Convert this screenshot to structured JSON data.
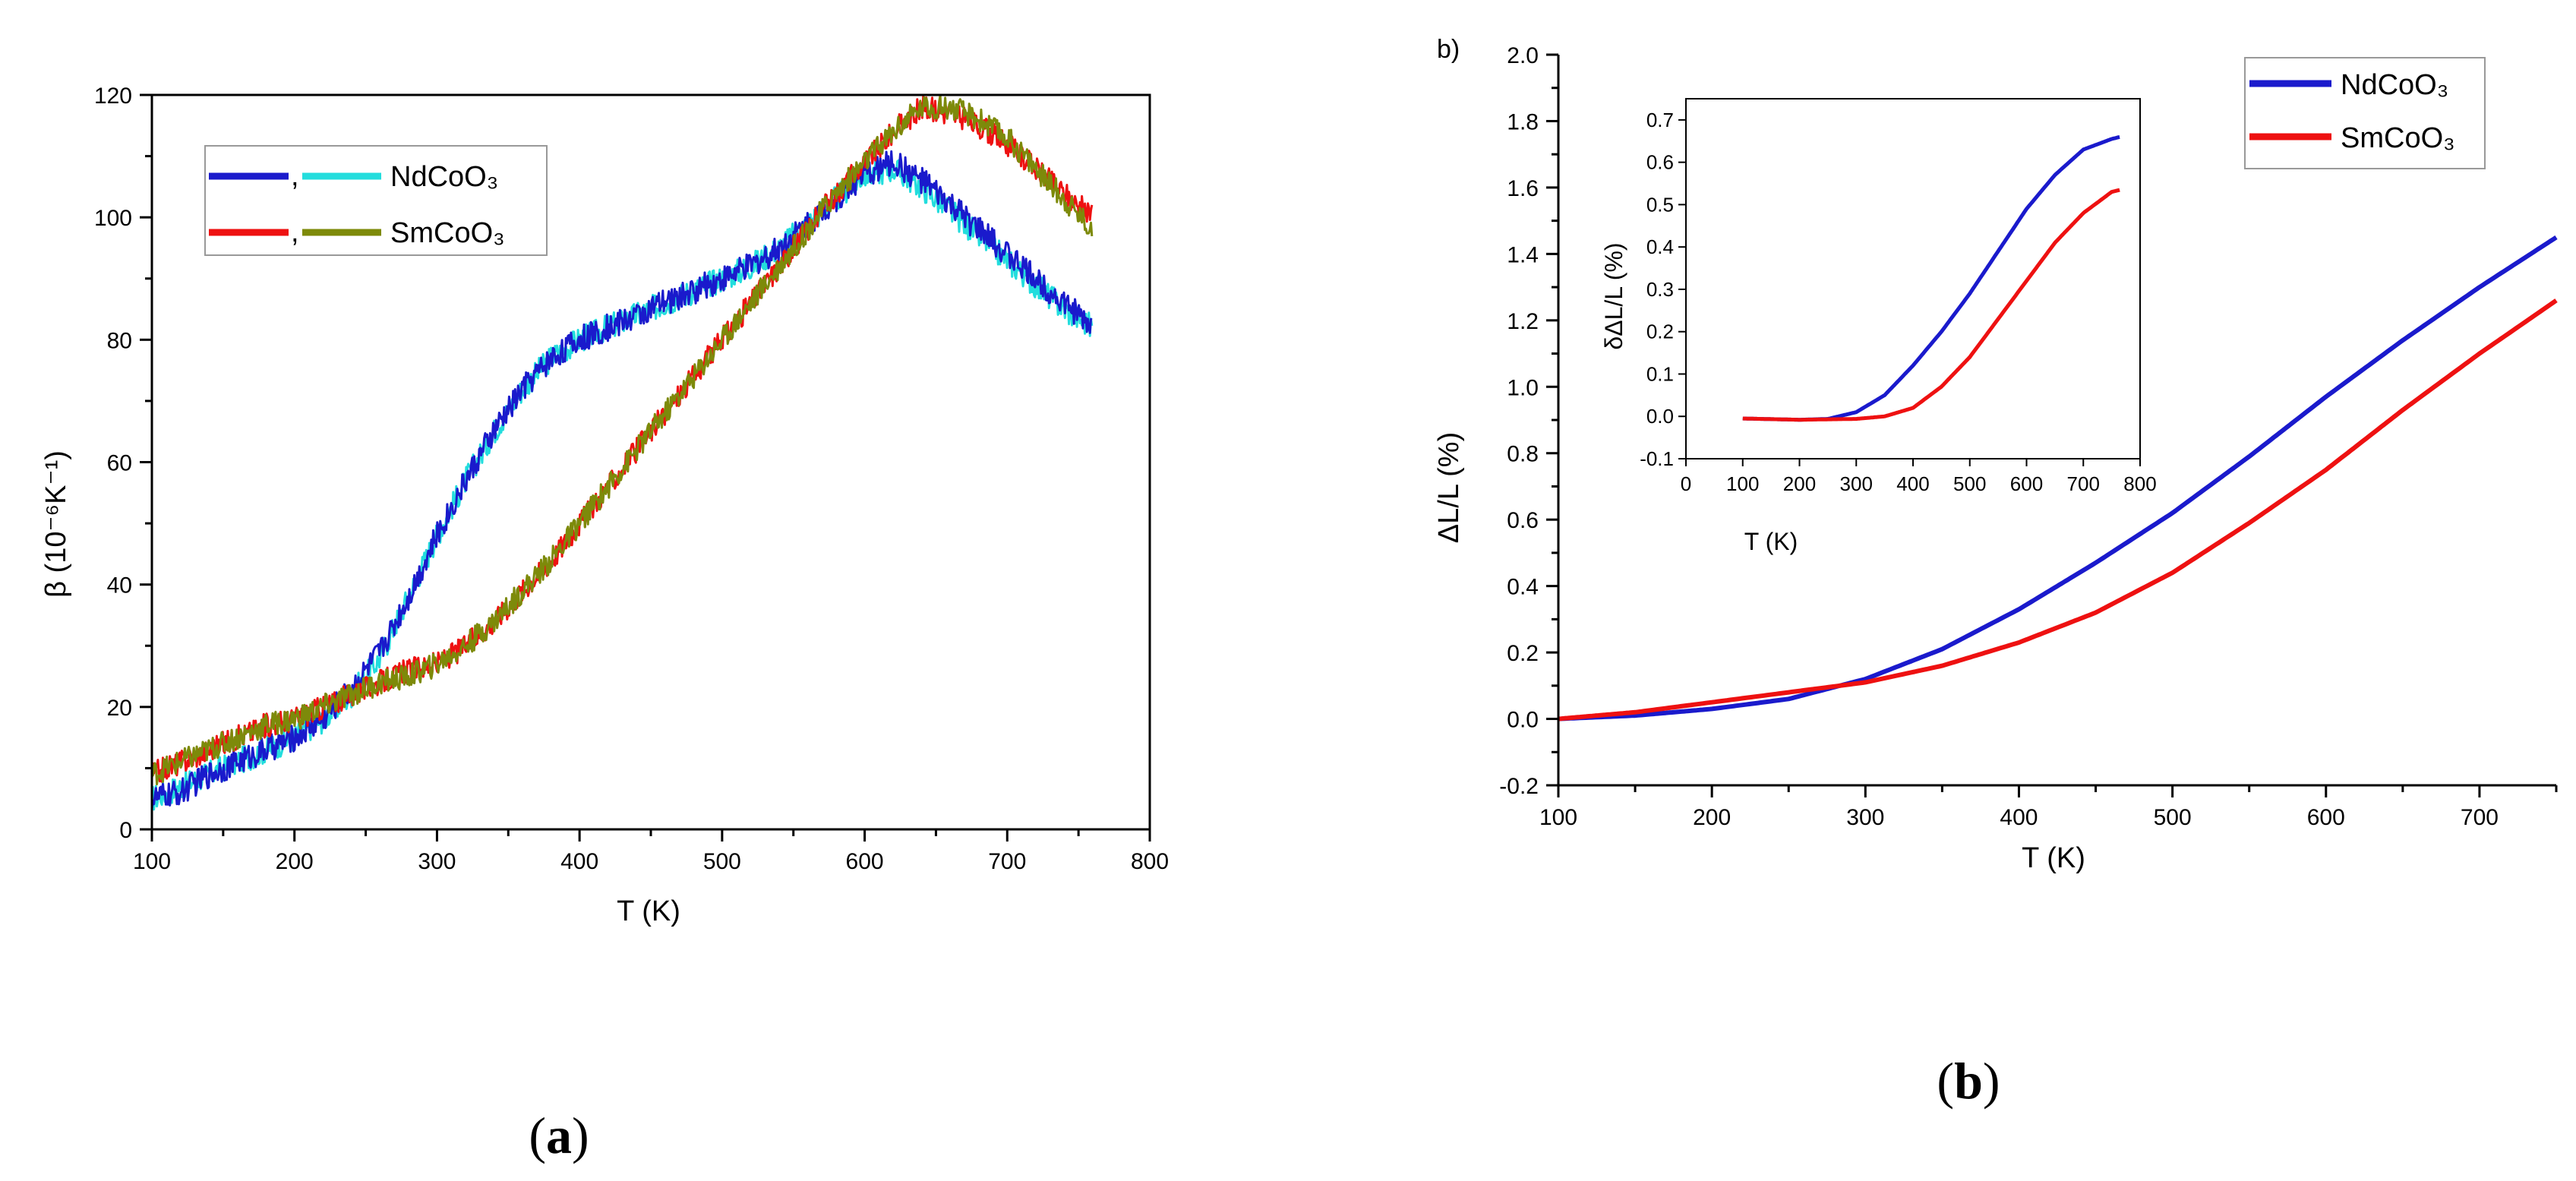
{
  "chart_data": [
    {
      "id": "panel-a",
      "type": "line",
      "xlabel": "T (K)",
      "ylabel": "β (10⁻⁶K⁻¹)",
      "xlim": [
        100,
        800
      ],
      "ylim": [
        0,
        120
      ],
      "xticks": [
        100,
        200,
        300,
        400,
        500,
        600,
        700,
        800
      ],
      "yticks": [
        0,
        20,
        40,
        60,
        80,
        100,
        120
      ],
      "caption": {
        "open": "(",
        "letter": "a",
        "close": ")"
      },
      "legend": {
        "position": "top-left",
        "entries": [
          {
            "label": "NdCoO₃",
            "sep": ",",
            "colors": [
              "#1a1acc",
              "#22dddd"
            ]
          },
          {
            "label": "SmCoO₃",
            "sep": ",",
            "colors": [
              "#ee1111",
              "#7d8a0a"
            ]
          }
        ]
      },
      "series": [
        {
          "name": "NdCoO3 (run 1)",
          "color": "#22dddd",
          "noise": 2.2,
          "x": [
            100,
            120,
            140,
            160,
            180,
            200,
            220,
            240,
            260,
            280,
            300,
            320,
            340,
            360,
            380,
            400,
            420,
            440,
            460,
            480,
            500,
            520,
            540,
            560,
            580,
            600,
            620,
            640,
            660,
            680,
            700,
            720,
            740,
            760
          ],
          "y": [
            5,
            7,
            9,
            11,
            13,
            15,
            18,
            22,
            28,
            38,
            48,
            57,
            65,
            72,
            77,
            80,
            82,
            84,
            86,
            88,
            90,
            92,
            95,
            99,
            103,
            107,
            108,
            105,
            101,
            97,
            93,
            89,
            85,
            82
          ]
        },
        {
          "name": "NdCoO3 (run 2)",
          "color": "#1a1acc",
          "noise": 2.2,
          "x": [
            100,
            120,
            140,
            160,
            180,
            200,
            220,
            240,
            260,
            280,
            300,
            320,
            340,
            360,
            380,
            400,
            420,
            440,
            460,
            480,
            500,
            520,
            540,
            560,
            580,
            600,
            620,
            640,
            660,
            680,
            700,
            720,
            740,
            760
          ],
          "y": [
            5,
            6,
            9,
            11,
            13,
            15,
            18,
            23,
            29,
            38,
            48,
            57,
            65,
            72,
            77,
            80,
            82,
            84,
            86,
            88,
            90,
            92,
            95,
            99,
            103,
            107,
            109,
            106,
            102,
            98,
            94,
            90,
            86,
            82
          ]
        },
        {
          "name": "SmCoO3 (run 1)",
          "color": "#ee1111",
          "noise": 2.0,
          "x": [
            100,
            120,
            140,
            160,
            180,
            200,
            220,
            240,
            260,
            280,
            300,
            320,
            340,
            360,
            380,
            400,
            420,
            440,
            460,
            480,
            500,
            520,
            540,
            560,
            580,
            600,
            620,
            640,
            660,
            680,
            700,
            720,
            740,
            760
          ],
          "y": [
            9,
            11,
            13,
            15,
            17,
            18,
            20,
            22,
            24,
            26,
            27,
            30,
            34,
            39,
            44,
            50,
            56,
            62,
            68,
            74,
            80,
            86,
            92,
            98,
            104,
            109,
            114,
            118,
            117,
            115,
            112,
            108,
            104,
            100
          ]
        },
        {
          "name": "SmCoO3 (run 2)",
          "color": "#7d8a0a",
          "noise": 2.0,
          "x": [
            100,
            120,
            140,
            160,
            180,
            200,
            220,
            240,
            260,
            280,
            300,
            320,
            340,
            360,
            380,
            400,
            420,
            440,
            460,
            480,
            500,
            520,
            540,
            560,
            580,
            600,
            620,
            640,
            660,
            680,
            700,
            720,
            740,
            760
          ],
          "y": [
            9,
            11,
            13,
            15,
            17,
            18,
            20,
            22,
            24,
            25,
            27,
            30,
            34,
            39,
            44,
            50,
            56,
            62,
            68,
            74,
            80,
            86,
            92,
            98,
            104,
            109,
            114,
            118,
            118,
            116,
            113,
            108,
            103,
            98
          ]
        }
      ]
    },
    {
      "id": "panel-b",
      "type": "line",
      "tag": "b)",
      "xlabel": "T (K)",
      "ylabel": "ΔL/L (%)",
      "xlim": [
        100,
        750
      ],
      "ylim": [
        -0.2,
        2.0
      ],
      "xticks": [
        100,
        200,
        300,
        400,
        500,
        600,
        700
      ],
      "yticks": [
        -0.2,
        0.0,
        0.2,
        0.4,
        0.6,
        0.8,
        1.0,
        1.2,
        1.4,
        1.6,
        1.8,
        2.0
      ],
      "caption": {
        "open": "(",
        "letter": "b",
        "close": ")"
      },
      "legend": {
        "position": "top-right",
        "entries": [
          {
            "label": "NdCoO₃",
            "color": "#1a1acc"
          },
          {
            "label": "SmCoO₃",
            "color": "#ee1111"
          }
        ]
      },
      "series": [
        {
          "name": "NdCoO3",
          "color": "#1a1acc",
          "x": [
            100,
            150,
            200,
            250,
            300,
            350,
            400,
            450,
            500,
            550,
            600,
            650,
            700,
            750
          ],
          "y": [
            0.0,
            0.01,
            0.03,
            0.06,
            0.12,
            0.21,
            0.33,
            0.47,
            0.62,
            0.79,
            0.97,
            1.14,
            1.3,
            1.45
          ]
        },
        {
          "name": "SmCoO3",
          "color": "#ee1111",
          "x": [
            100,
            150,
            200,
            250,
            300,
            350,
            400,
            450,
            500,
            550,
            600,
            650,
            700,
            750
          ],
          "y": [
            0.0,
            0.02,
            0.05,
            0.08,
            0.11,
            0.16,
            0.23,
            0.32,
            0.44,
            0.59,
            0.75,
            0.93,
            1.1,
            1.26
          ]
        }
      ],
      "inset": {
        "xlabel": "T (K)",
        "ylabel": "δΔL/L (%)",
        "xlim": [
          0,
          800
        ],
        "ylim": [
          -0.1,
          0.75
        ],
        "xticks": [
          0,
          100,
          200,
          300,
          400,
          500,
          600,
          700,
          800
        ],
        "yticks": [
          -0.1,
          0.0,
          0.1,
          0.2,
          0.3,
          0.4,
          0.5,
          0.6,
          0.7
        ],
        "series": [
          {
            "name": "NdCoO3",
            "color": "#1a1acc",
            "x": [
              100,
              200,
              250,
              300,
              350,
              400,
              450,
              500,
              550,
              600,
              650,
              700,
              750,
              765
            ],
            "y": [
              -0.005,
              -0.008,
              -0.006,
              0.01,
              0.05,
              0.12,
              0.2,
              0.29,
              0.39,
              0.49,
              0.57,
              0.63,
              0.655,
              0.66
            ]
          },
          {
            "name": "SmCoO3",
            "color": "#ee1111",
            "x": [
              100,
              200,
              300,
              350,
              400,
              450,
              500,
              550,
              600,
              650,
              700,
              750,
              765
            ],
            "y": [
              -0.005,
              -0.008,
              -0.006,
              0.0,
              0.02,
              0.07,
              0.14,
              0.23,
              0.32,
              0.41,
              0.48,
              0.53,
              0.535
            ]
          }
        ]
      }
    }
  ]
}
